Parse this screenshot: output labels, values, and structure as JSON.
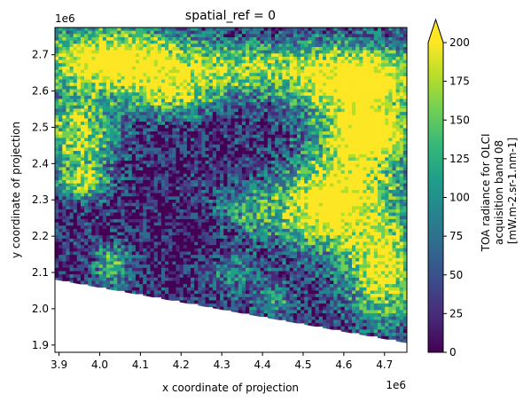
{
  "chart_data": {
    "type": "heatmap",
    "title": "spatial_ref = 0",
    "xlabel": "x coordinate of projection",
    "ylabel": "y coordinate of projection",
    "x_offset_label": "1e6",
    "y_offset_label": "1e6",
    "x_ticks": [
      3.9,
      4.0,
      4.1,
      4.2,
      4.3,
      4.4,
      4.5,
      4.6,
      4.7
    ],
    "x_tick_labels": [
      "3.9",
      "4.0",
      "4.1",
      "4.2",
      "4.3",
      "4.4",
      "4.5",
      "4.6",
      "4.7"
    ],
    "y_ticks": [
      1.9,
      2.0,
      2.1,
      2.2,
      2.3,
      2.4,
      2.5,
      2.6,
      2.7
    ],
    "y_tick_labels": [
      "1.9",
      "2.0",
      "2.1",
      "2.2",
      "2.3",
      "2.4",
      "2.5",
      "2.6",
      "2.7"
    ],
    "xlim": [
      3.89,
      4.755
    ],
    "ylim": [
      1.88,
      2.775
    ],
    "swath_lower_edge": {
      "x": [
        3.89,
        4.755
      ],
      "y": [
        2.08,
        1.905
      ]
    },
    "colorbar": {
      "label_lines": [
        "TOA radiance for OLCI",
        "acquisition band 08",
        "[mW.m-2.sr-1.nm-1]"
      ],
      "vmin": 0,
      "vmax": 200,
      "extend": "max",
      "ticks": [
        0,
        25,
        50,
        75,
        100,
        125,
        150,
        175,
        200
      ],
      "tick_labels": [
        "0",
        "25",
        "50",
        "75",
        "100",
        "125",
        "150",
        "175",
        "200"
      ],
      "colormap": "viridis"
    },
    "grid": false,
    "colors": [
      "#440154",
      "#482878",
      "#3e4989",
      "#31688e",
      "#26828e",
      "#1f9e89",
      "#35b779",
      "#6ece58",
      "#b5de2b",
      "#fde725"
    ]
  }
}
